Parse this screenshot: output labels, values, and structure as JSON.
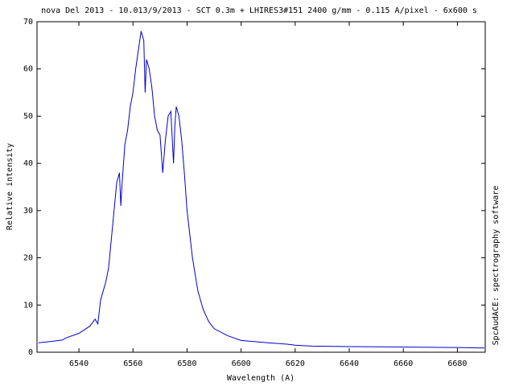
{
  "chart_data": {
    "type": "line",
    "title": "nova Del 2013 - 10.013/9/2013 - SCT 0.3m + LHIRES3#151 2400 g/mm - 0.115 A/pixel - 6x600 s",
    "x_label": "Wavelength (A)",
    "y_label": "Relative intensity",
    "side_note": "SpcAudACE: spectrography software",
    "x": [
      6525,
      6530,
      6534,
      6535,
      6540,
      6544,
      6546,
      6547,
      6548,
      6550,
      6551,
      6552,
      6553,
      6554,
      6555,
      6555.5,
      6556,
      6557,
      6558,
      6559,
      6560,
      6561,
      6562,
      6563,
      6564,
      6564.5,
      6565,
      6566,
      6567,
      6568,
      6569,
      6570,
      6571,
      6572,
      6573,
      6574,
      6575,
      6575.5,
      6576,
      6577,
      6578,
      6579,
      6580,
      6582,
      6584,
      6586,
      6588,
      6590,
      6595,
      6600,
      6610,
      6617,
      6620,
      6626,
      6640,
      6660,
      6678,
      6680,
      6690
    ],
    "values": [
      2,
      2.3,
      2.6,
      3,
      4,
      5.5,
      7,
      6,
      11,
      15,
      18,
      24,
      30,
      36,
      38,
      31,
      36,
      44,
      47,
      52,
      55,
      60,
      64,
      68,
      66,
      55,
      62,
      60,
      56,
      50,
      47,
      46,
      38,
      45,
      50,
      51,
      40,
      48,
      52,
      50,
      45,
      38,
      30,
      20,
      13,
      9,
      6.5,
      5,
      3.5,
      2.5,
      2,
      1.7,
      1.5,
      1.3,
      1.2,
      1.1,
      1,
      1,
      0.9
    ],
    "color": "#0000cc",
    "xlim": [
      6524.5,
      6690.3
    ],
    "ylim": [
      0,
      70
    ],
    "xticks": [
      6540,
      6560,
      6580,
      6600,
      6620,
      6640,
      6660,
      6680
    ],
    "yticks": [
      0,
      10,
      20,
      30,
      40,
      50,
      60,
      70
    ]
  }
}
